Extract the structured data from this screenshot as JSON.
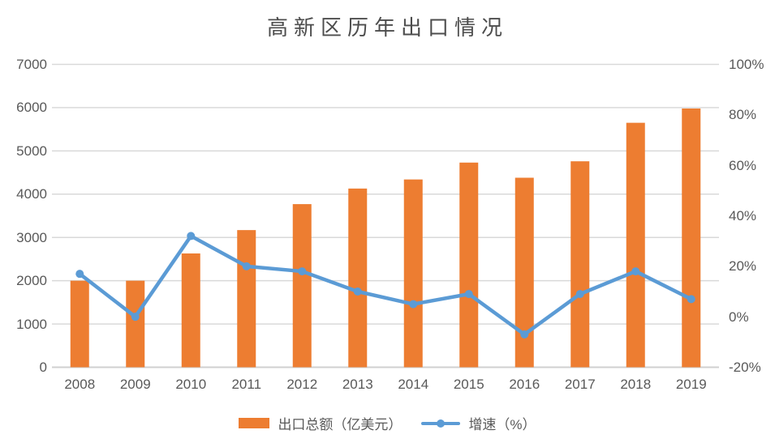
{
  "title": "高新区历年出口情况",
  "chart_data": {
    "type": "bar+line",
    "title": "高新区历年出口情况",
    "categories": [
      "2008",
      "2009",
      "2010",
      "2011",
      "2012",
      "2013",
      "2014",
      "2015",
      "2016",
      "2017",
      "2018",
      "2019"
    ],
    "series": [
      {
        "name": "出口总额（亿美元）",
        "type": "bar",
        "axis": "left",
        "values": [
          2000,
          2000,
          2630,
          3170,
          3770,
          4130,
          4340,
          4730,
          4380,
          4760,
          5650,
          5980
        ]
      },
      {
        "name": "增速（%）",
        "type": "line",
        "axis": "right",
        "values": [
          17,
          0,
          32,
          20,
          18,
          10,
          5,
          9,
          -7,
          9,
          18,
          7
        ]
      }
    ],
    "left_axis": {
      "min": 0,
      "max": 7000,
      "tick_values": [
        0,
        1000,
        2000,
        3000,
        4000,
        5000,
        6000,
        7000
      ],
      "tick_labels": [
        "0",
        "1000",
        "2000",
        "3000",
        "4000",
        "5000",
        "6000",
        "7000"
      ]
    },
    "right_axis": {
      "min": -20,
      "max": 100,
      "tick_values": [
        -20,
        0,
        20,
        40,
        60,
        80,
        100
      ],
      "tick_labels": [
        "-20%",
        "0%",
        "20%",
        "40%",
        "60%",
        "80%",
        "100%"
      ]
    },
    "grid": true,
    "legend_position": "bottom",
    "colors": {
      "bar": "#ED7D31",
      "line": "#5B9BD5",
      "grid": "#D9D9D9",
      "axis_line": "#D0D0D0",
      "label": "#595959",
      "title": "#4D4D4D",
      "background": "#FFFFFF"
    }
  }
}
